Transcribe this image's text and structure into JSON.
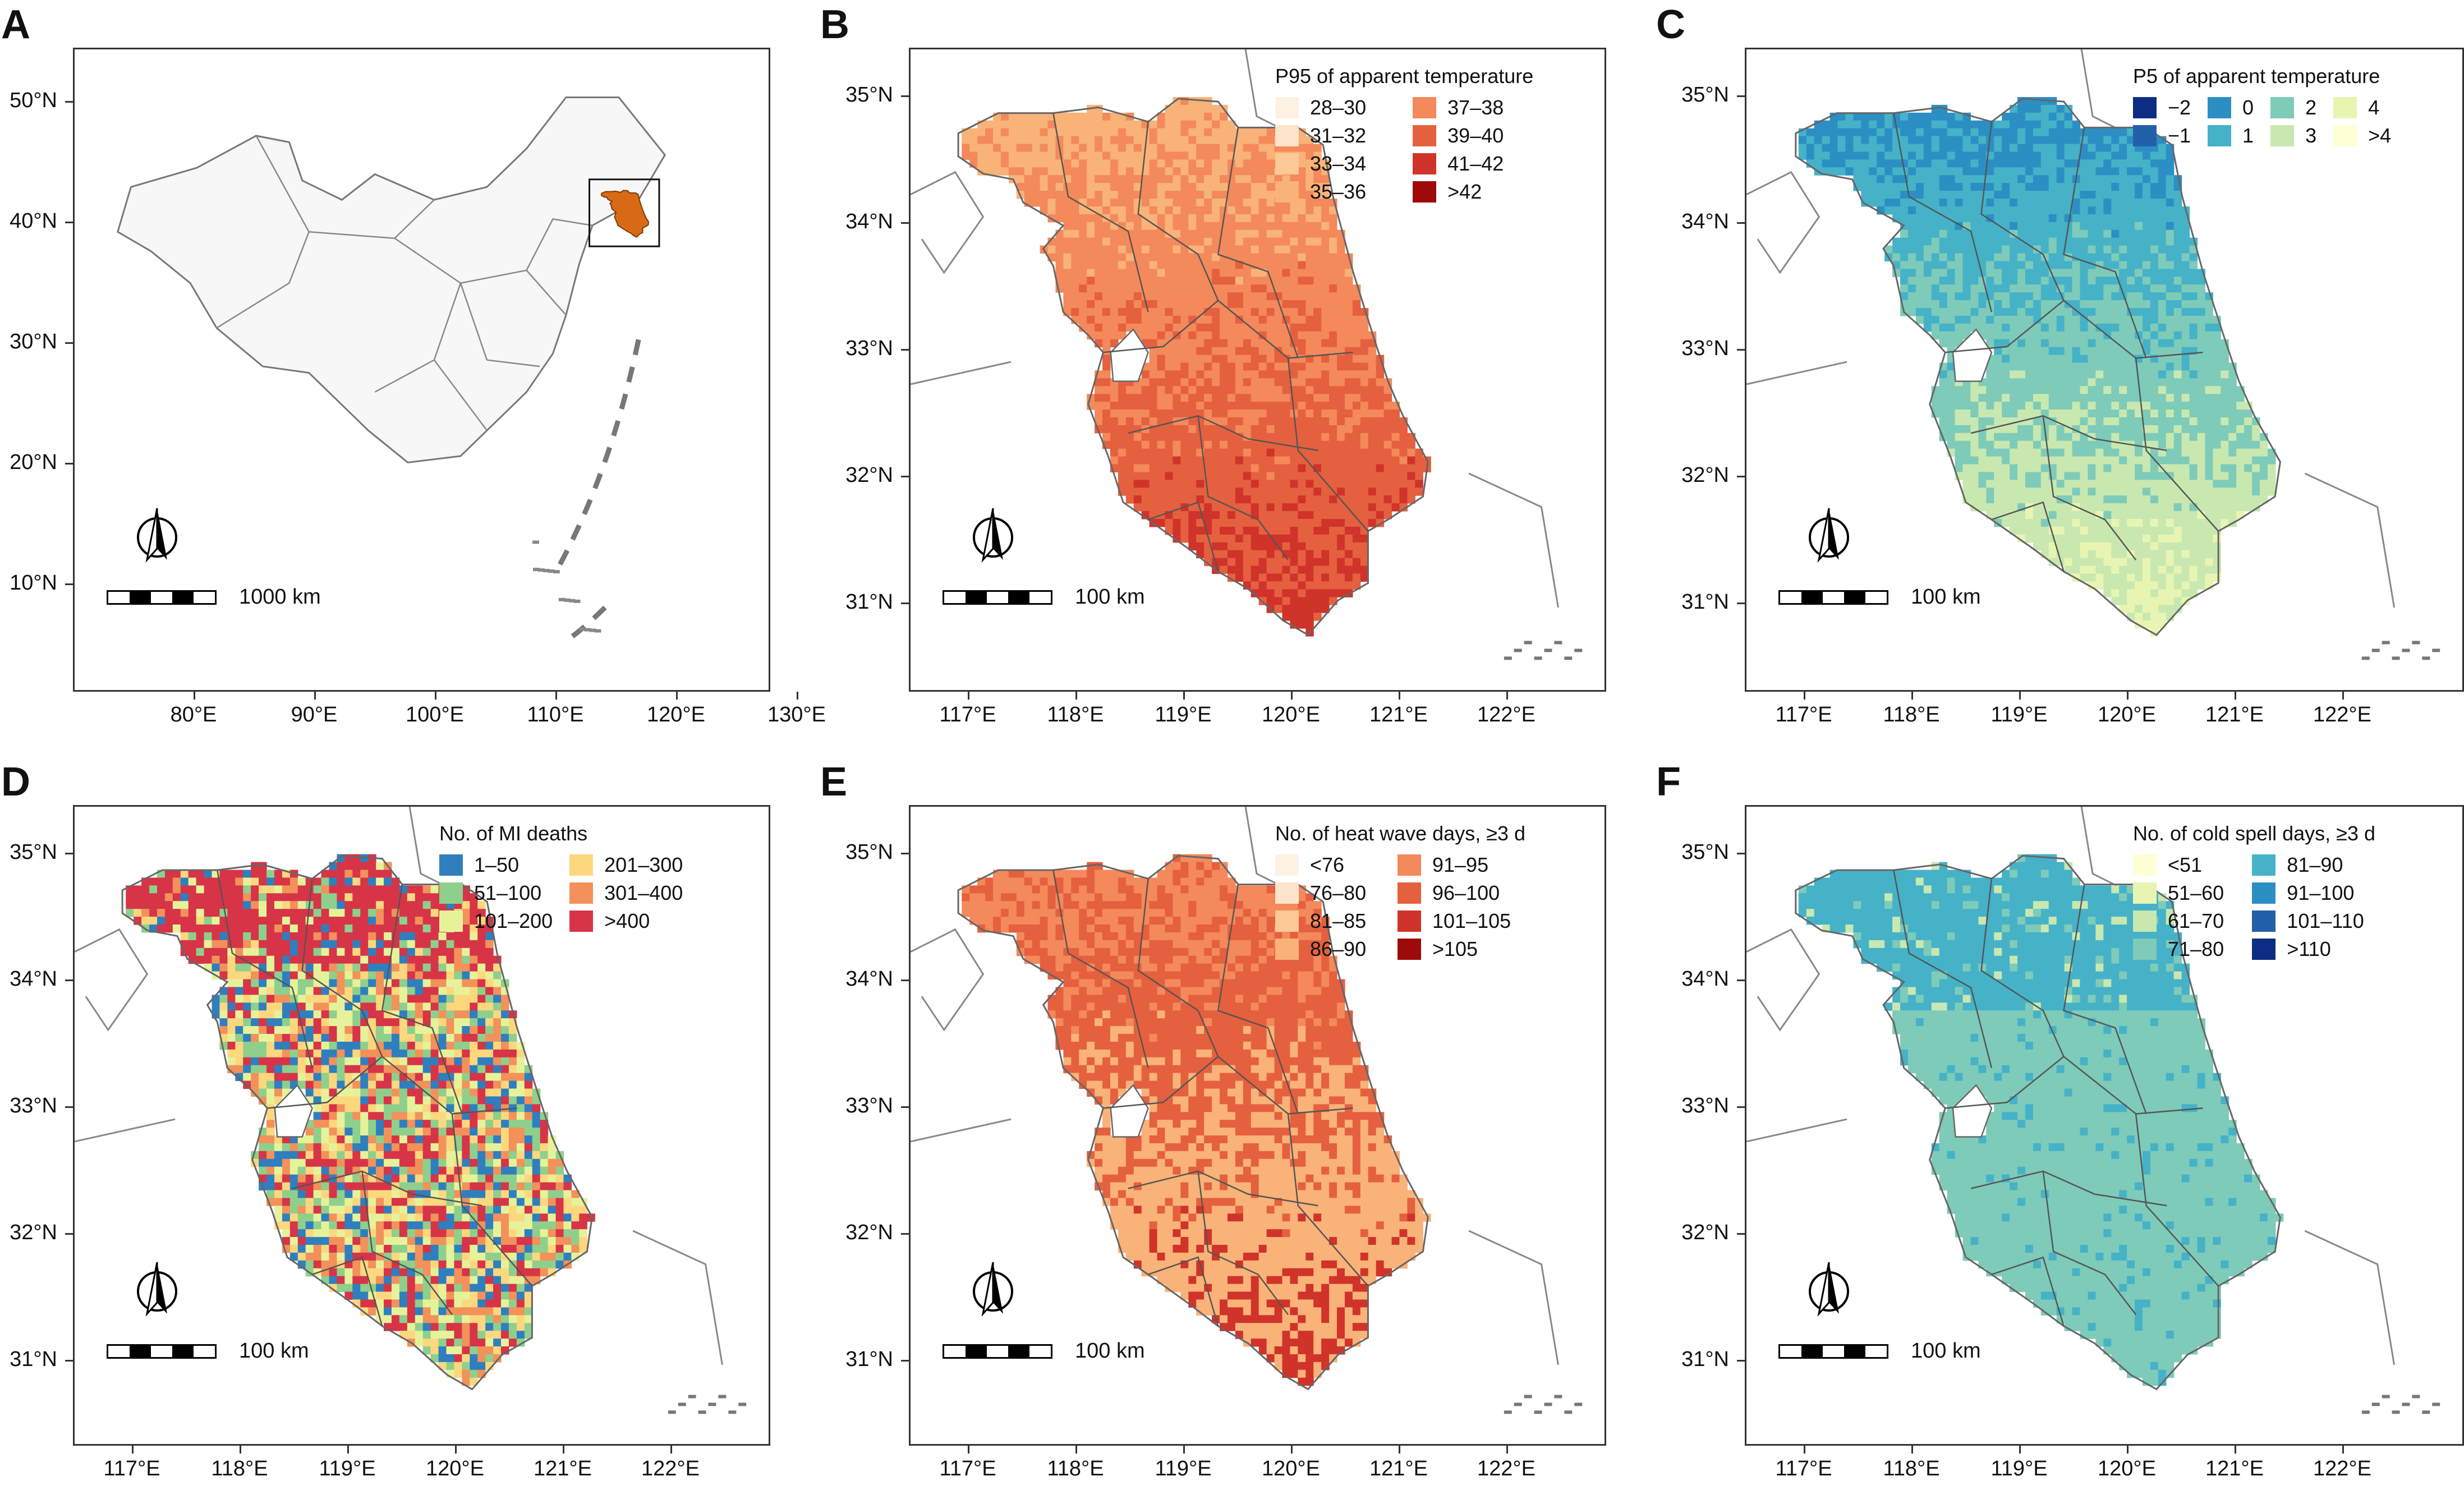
{
  "panels": [
    {
      "letter": "A",
      "kind": "china",
      "legend": null,
      "scale_label": "1000 km",
      "y_ticks": [
        "50°N",
        "40°N",
        "30°N",
        "20°N",
        "10°N"
      ],
      "x_ticks": [
        "80°E",
        "90°E",
        "100°E",
        "110°E",
        "120°E",
        "130°E"
      ]
    },
    {
      "letter": "B",
      "kind": "jiangsu",
      "legend": {
        "title": "P95 of apparent temperature",
        "items": [
          {
            "label": "28–30",
            "color": "#fdf1e4"
          },
          {
            "label": "37–38",
            "color": "#f4895b"
          },
          {
            "label": "31–32",
            "color": "#fde3c9"
          },
          {
            "label": "39–40",
            "color": "#e5603f"
          },
          {
            "label": "33–34",
            "color": "#fcc895"
          },
          {
            "label": "41–42",
            "color": "#d0332a"
          },
          {
            "label": "35–36",
            "color": "#f9b278"
          },
          {
            "label": ">42",
            "color": "#9e0a0a"
          }
        ]
      },
      "palette": [
        "#f9b278",
        "#f4895b",
        "#e5603f",
        "#d0332a"
      ],
      "scale_label": "100 km",
      "y_ticks": [
        "35°N",
        "34°N",
        "33°N",
        "32°N",
        "31°N"
      ],
      "x_ticks": [
        "117°E",
        "118°E",
        "119°E",
        "120°E",
        "121°E",
        "122°E"
      ]
    },
    {
      "letter": "C",
      "kind": "jiangsu",
      "legend": {
        "title": "P5 of apparent temperature",
        "cols": 3,
        "items": [
          {
            "label": "−2",
            "color": "#0c2d83"
          },
          {
            "label": "0",
            "color": "#2c8fc4"
          },
          {
            "label": "2",
            "color": "#7ecbb9"
          },
          {
            "label": "4",
            "color": "#e8f5b2"
          },
          {
            "label": "−1",
            "color": "#2160aa"
          },
          {
            "label": "1",
            "color": "#45b2c8"
          },
          {
            "label": "3",
            "color": "#c8e8b0"
          },
          {
            "label": ">4",
            "color": "#ffffd6"
          }
        ]
      },
      "palette": [
        "#2c8fc4",
        "#45b2c8",
        "#7ecbb9",
        "#c8e8b0",
        "#e8f5b2"
      ],
      "scale_label": "100 km",
      "y_ticks": [
        "35°N",
        "34°N",
        "33°N",
        "32°N",
        "31°N"
      ],
      "x_ticks": [
        "117°E",
        "118°E",
        "119°E",
        "120°E",
        "121°E",
        "122°E"
      ]
    },
    {
      "letter": "D",
      "kind": "jiangsu",
      "legend": {
        "title": "No. of MI deaths",
        "items": [
          {
            "label": "1–50",
            "color": "#2f7fbf"
          },
          {
            "label": "201–300",
            "color": "#fdd77e"
          },
          {
            "label": "51–100",
            "color": "#8fcf8c"
          },
          {
            "label": "301–400",
            "color": "#f3915a"
          },
          {
            "label": "101–200",
            "color": "#e6f29a"
          },
          {
            "label": ">400",
            "color": "#d73447"
          }
        ]
      },
      "palette": [
        "#d73447",
        "#fdd77e",
        "#e6f29a",
        "#2f7fbf",
        "#f3915a",
        "#8fcf8c"
      ],
      "scale_label": "100 km",
      "y_ticks": [
        "35°N",
        "34°N",
        "33°N",
        "32°N",
        "31°N"
      ],
      "x_ticks": [
        "117°E",
        "118°E",
        "119°E",
        "120°E",
        "121°E",
        "122°E"
      ]
    },
    {
      "letter": "E",
      "kind": "jiangsu",
      "legend": {
        "title": "No. of heat wave days, ≥3 d",
        "items": [
          {
            "label": "<76",
            "color": "#fdf1e4"
          },
          {
            "label": "91–95",
            "color": "#f4895b"
          },
          {
            "label": "76–80",
            "color": "#fde3c9"
          },
          {
            "label": "96–100",
            "color": "#e5603f"
          },
          {
            "label": "81–85",
            "color": "#fcc895"
          },
          {
            "label": "101–105",
            "color": "#d0332a"
          },
          {
            "label": "86–90",
            "color": "#f9b278"
          },
          {
            "label": ">105",
            "color": "#9e0a0a"
          }
        ]
      },
      "palette": [
        "#f4895b",
        "#e5603f",
        "#f9b278",
        "#d0332a"
      ],
      "scale_label": "100 km",
      "y_ticks": [
        "35°N",
        "34°N",
        "33°N",
        "32°N",
        "31°N"
      ],
      "x_ticks": [
        "117°E",
        "118°E",
        "119°E",
        "120°E",
        "121°E",
        "122°E"
      ]
    },
    {
      "letter": "F",
      "kind": "jiangsu",
      "legend": {
        "title": "No. of cold spell days, ≥3 d",
        "items": [
          {
            "label": "<51",
            "color": "#ffffd6"
          },
          {
            "label": "81–90",
            "color": "#45b2c8"
          },
          {
            "label": "51–60",
            "color": "#e8f5b2"
          },
          {
            "label": "91–100",
            "color": "#2c8fc4"
          },
          {
            "label": "61–70",
            "color": "#c8e8b0"
          },
          {
            "label": "101–110",
            "color": "#2160aa"
          },
          {
            "label": "71–80",
            "color": "#7ecbb9"
          },
          {
            "label": ">110",
            "color": "#0c2d83"
          }
        ]
      },
      "palette": [
        "#7ecbb9",
        "#45b2c8",
        "#c8e8b0",
        "#2c8fc4"
      ],
      "scale_label": "100 km",
      "y_ticks": [
        "35°N",
        "34°N",
        "33°N",
        "32°N",
        "31°N"
      ],
      "x_ticks": [
        "117°E",
        "118°E",
        "119°E",
        "120°E",
        "121°E",
        "122°E"
      ]
    }
  ]
}
